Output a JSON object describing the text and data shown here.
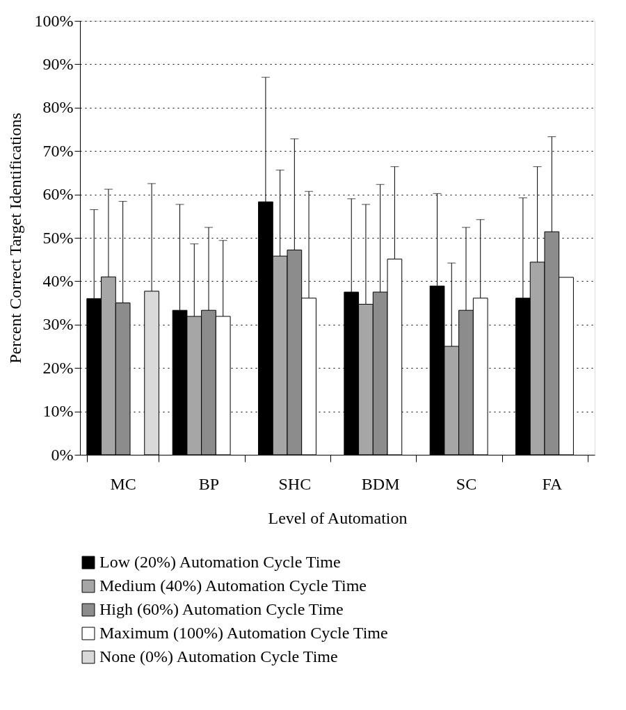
{
  "chart_data": {
    "type": "bar",
    "xlabel": "Level of Automation",
    "ylabel": "Percent Correct Target Identifications",
    "categories": [
      "MC",
      "BP",
      "SHC",
      "BDM",
      "SC",
      "FA"
    ],
    "series": [
      {
        "name": "Low (20%) Automation Cycle Time",
        "color": "#000000",
        "values": [
          36,
          33.3,
          58.3,
          37.5,
          38.9,
          36.1
        ],
        "errors": [
          [
            36,
            56.5
          ],
          [
            33.3,
            57.7
          ],
          [
            58.3,
            87
          ],
          [
            37.5,
            59
          ],
          [
            38.9,
            60.2
          ],
          [
            36.1,
            59.2
          ]
        ]
      },
      {
        "name": "Medium (40%) Automation Cycle Time",
        "color": "#a6a6a6",
        "values": [
          41,
          31.9,
          45.8,
          34.7,
          25,
          44.4
        ],
        "errors": [
          [
            41,
            61.2
          ],
          [
            31.9,
            48.6
          ],
          [
            45.8,
            65.6
          ],
          [
            34.7,
            57.7
          ],
          [
            25,
            44.2
          ],
          [
            44.4,
            66.4
          ]
        ]
      },
      {
        "name": "High (60%) Automation Cycle Time",
        "color": "#8c8c8c",
        "values": [
          35,
          33.3,
          47.2,
          37.5,
          33.3,
          51.4
        ],
        "errors": [
          [
            35,
            58.4
          ],
          [
            33.3,
            52.4
          ],
          [
            47.2,
            72.8
          ],
          [
            37.5,
            62.3
          ],
          [
            33.3,
            52.4
          ],
          [
            51.4,
            73.3
          ]
        ]
      },
      {
        "name": "Maximum (100%) Automation Cycle Time",
        "color": "#ffffff",
        "values": [
          null,
          31.9,
          36.1,
          45.1,
          36.1,
          40.9
        ],
        "errors": [
          null,
          [
            31.9,
            49.4
          ],
          [
            36.1,
            60.7
          ],
          [
            45.1,
            66.4
          ],
          [
            36.1,
            54.2
          ],
          null
        ]
      },
      {
        "name": "None (0%) Automation Cycle Time",
        "color": "#d9d9d9",
        "values": [
          37.7,
          null,
          null,
          null,
          null,
          null
        ],
        "errors": [
          [
            37.7,
            62.5
          ],
          null,
          null,
          null,
          null,
          null
        ]
      }
    ],
    "ylim": [
      0,
      100
    ],
    "yticks": [
      {
        "value": 0,
        "label": "0%"
      },
      {
        "value": 10,
        "label": "10%"
      },
      {
        "value": 20,
        "label": "20%"
      },
      {
        "value": 30,
        "label": "30%"
      },
      {
        "value": 40,
        "label": "40%"
      },
      {
        "value": 50,
        "label": "50%"
      },
      {
        "value": 60,
        "label": "60%"
      },
      {
        "value": 70,
        "label": "70%"
      },
      {
        "value": 80,
        "label": "80%"
      },
      {
        "value": 90,
        "label": "90%"
      },
      {
        "value": 100,
        "label": "100%"
      }
    ],
    "grid": "y",
    "legend": "bottom"
  }
}
